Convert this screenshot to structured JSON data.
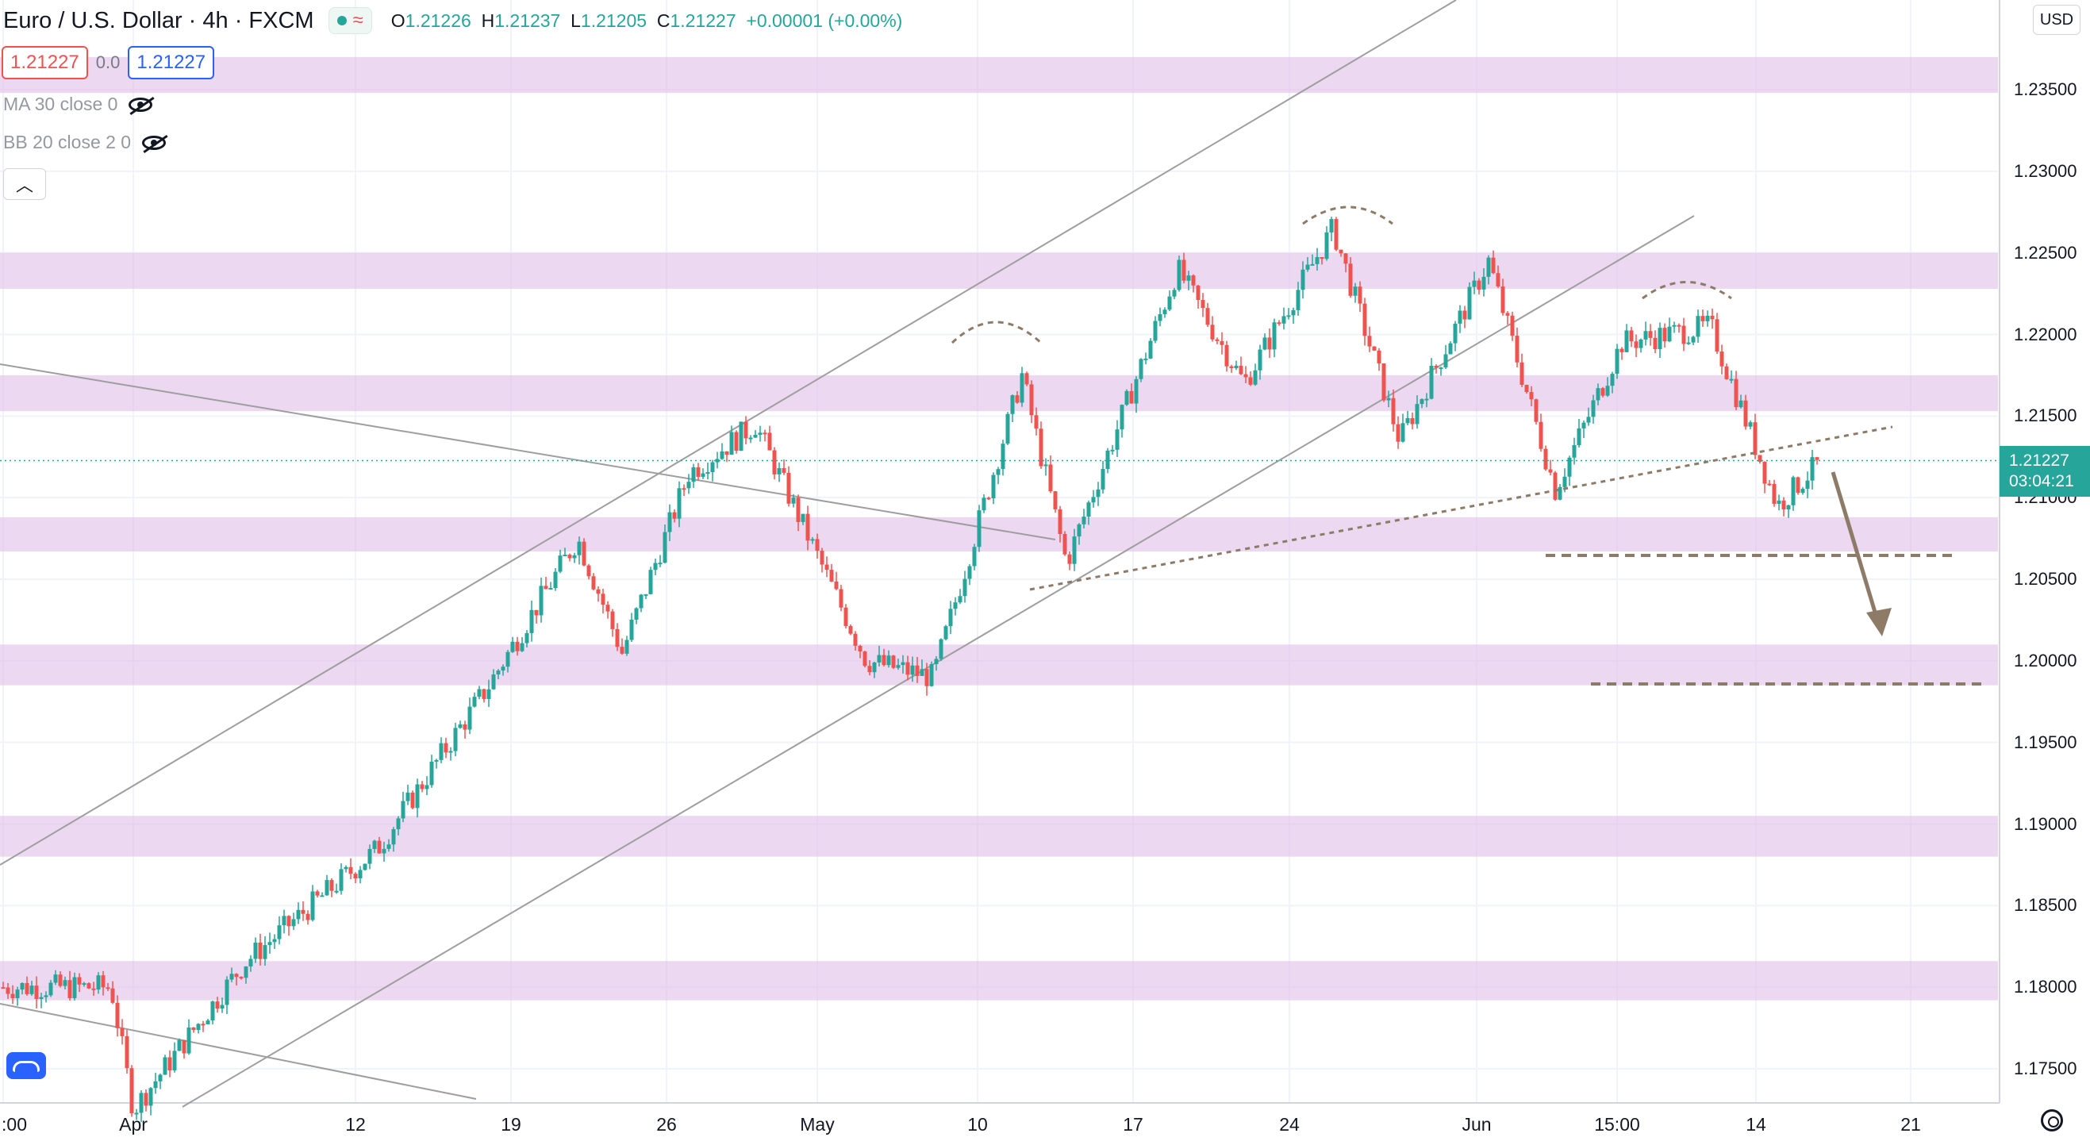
{
  "header": {
    "symbol_title": "Euro / U.S. Dollar · 4h · FXCM",
    "ohlc": {
      "o_label": "O",
      "o_value": "1.21226",
      "h_label": "H",
      "h_value": "1.21237",
      "l_label": "L",
      "l_value": "1.21205",
      "c_label": "C",
      "c_value": "1.21227",
      "change": "+0.00001 (+0.00%)"
    }
  },
  "trade_panel": {
    "sell_price": "1.21227",
    "spread": "0.0",
    "buy_price": "1.21227"
  },
  "indicators": [
    {
      "label": "MA 30 close 0",
      "visible": false
    },
    {
      "label": "BB 20 close 2 0",
      "visible": false
    }
  ],
  "price_axis": {
    "currency": "USD",
    "last_price_label": "1.21227",
    "countdown": "03:04:21"
  },
  "colors": {
    "up": "#26a69a",
    "down": "#ef5350",
    "zone": "#e1bee7",
    "trendline": "#9e9e9e",
    "annotation": "#8d7b68",
    "last_price": "#26a69a"
  },
  "chart_data": {
    "type": "candlestick",
    "timeframe": "4h",
    "y_ticks": [
      "1.23500",
      "1.23000",
      "1.22500",
      "1.22000",
      "1.21500",
      "1.21000",
      "1.20500",
      "1.20000",
      "1.19500",
      "1.19000",
      "1.18500",
      "1.18000",
      "1.17500"
    ],
    "x_ticks": [
      ":00",
      "Apr",
      "12",
      "19",
      "26",
      "May",
      "10",
      "17",
      "24",
      "Jun",
      "15:00",
      "14",
      "21"
    ],
    "ylim": [
      1.1715,
      1.239
    ],
    "last_price": 1.21227,
    "zones": [
      [
        1.2348,
        1.237
      ],
      [
        1.2228,
        1.225
      ],
      [
        1.2153,
        1.2175
      ],
      [
        1.2067,
        1.2088
      ],
      [
        1.1985,
        1.201
      ],
      [
        1.188,
        1.1905
      ],
      [
        1.1792,
        1.1816
      ]
    ],
    "key_points": [
      {
        "date": "Mar 31",
        "price": 1.18
      },
      {
        "date": "Apr 1",
        "price": 1.1725
      },
      {
        "date": "Apr 6",
        "price": 1.1815
      },
      {
        "date": "Apr 12",
        "price": 1.1885
      },
      {
        "date": "Apr 17",
        "price": 1.1985
      },
      {
        "date": "Apr 21",
        "price": 1.2075
      },
      {
        "date": "Apr 23",
        "price": 1.2005
      },
      {
        "date": "Apr 26",
        "price": 1.2115
      },
      {
        "date": "Apr 29",
        "price": 1.2145
      },
      {
        "date": "May 4",
        "price": 1.2
      },
      {
        "date": "May 7",
        "price": 1.199
      },
      {
        "date": "May 11",
        "price": 1.2175
      },
      {
        "date": "May 13",
        "price": 1.206
      },
      {
        "date": "May 18",
        "price": 1.224
      },
      {
        "date": "May 21",
        "price": 1.217
      },
      {
        "date": "May 25",
        "price": 1.2265
      },
      {
        "date": "May 28",
        "price": 1.2135
      },
      {
        "date": "Jun 1",
        "price": 1.2245
      },
      {
        "date": "Jun 4",
        "price": 1.2105
      },
      {
        "date": "Jun 7",
        "price": 1.2195
      },
      {
        "date": "Jun 11",
        "price": 1.2205
      },
      {
        "date": "Jun 14",
        "price": 1.2095
      },
      {
        "date": "Jun 16",
        "price": 1.2123
      }
    ]
  }
}
